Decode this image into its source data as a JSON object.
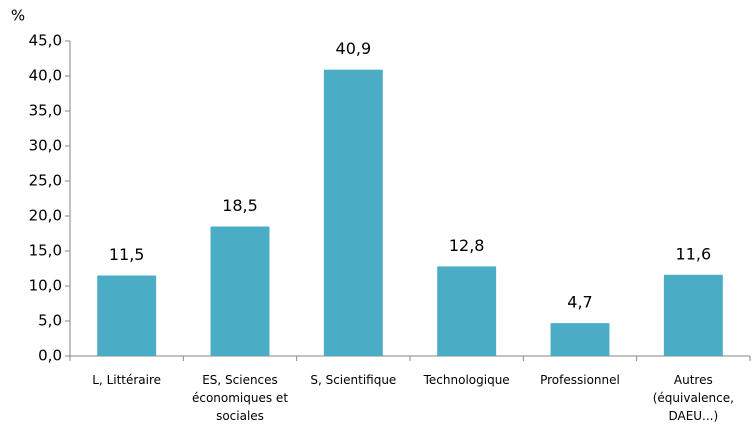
{
  "chart_data": {
    "type": "bar",
    "y_axis_label": "%",
    "categories": [
      "L, Littéraire",
      "ES, Sciences économiques et sociales",
      "S, Scientifique",
      "Technologique",
      "Professionnel",
      "Autres (équivalence, DAEU...)"
    ],
    "values": [
      11.5,
      18.5,
      40.9,
      12.8,
      4.7,
      11.6
    ],
    "value_labels": [
      "11,5",
      "18,5",
      "40,9",
      "12,8",
      "4,7",
      "11,6"
    ],
    "color": "#4bacc6",
    "ylim": [
      0,
      45
    ],
    "yticks": [
      {
        "value": 0,
        "label": "0,0"
      },
      {
        "value": 5,
        "label": "5,0"
      },
      {
        "value": 10,
        "label": "10,0"
      },
      {
        "value": 15,
        "label": "15,0"
      },
      {
        "value": 20,
        "label": "20,0"
      },
      {
        "value": 25,
        "label": "25,0"
      },
      {
        "value": 30,
        "label": "30,0"
      },
      {
        "value": 35,
        "label": "35,0"
      },
      {
        "value": 40,
        "label": "40,0"
      },
      {
        "value": 45,
        "label": "45,0"
      }
    ],
    "grid": false
  }
}
